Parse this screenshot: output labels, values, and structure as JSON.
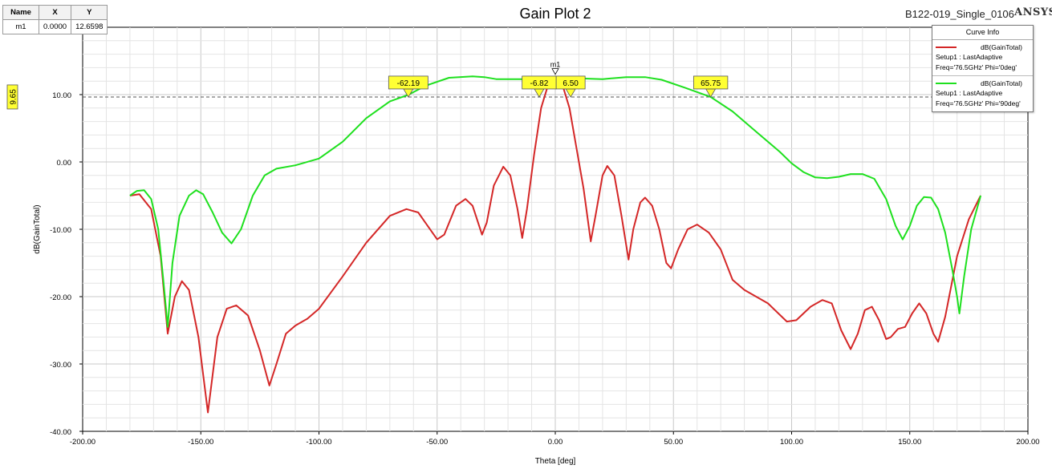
{
  "chart_data": {
    "type": "line",
    "title": "Gain Plot 2",
    "project": "B122-019_Single_0106",
    "vendor": "ANSYS",
    "xlabel": "Theta [deg]",
    "ylabel": "dB(GainTotal)",
    "xlim": [
      -200,
      200
    ],
    "ylim": [
      -40,
      20
    ],
    "x_ticks": [
      -200,
      -150,
      -100,
      -50,
      0,
      50,
      100,
      150,
      200
    ],
    "x_tick_labels": [
      "-200.00",
      "-150.00",
      "-100.00",
      "-50.00",
      "0.00",
      "50.00",
      "100.00",
      "150.00",
      "200.00"
    ],
    "y_ticks": [
      -40,
      -30,
      -20,
      -10,
      0,
      10
    ],
    "y_tick_labels": [
      "-40.00",
      "-30.00",
      "-20.00",
      "-10.00",
      "0.00",
      "10.00"
    ],
    "grid": true,
    "legend_title": "Curve Info",
    "legend_position": "top-right",
    "series": [
      {
        "name": "dB(GainTotal)",
        "setup": "Setup1 : LastAdaptive",
        "freq": "Freq='76.5GHz' Phi='0deg'",
        "color": "#d42727",
        "points": [
          [
            -180,
            -5
          ],
          [
            -176,
            -4.8
          ],
          [
            -171,
            -7
          ],
          [
            -167,
            -14
          ],
          [
            -164,
            -25.5
          ],
          [
            -161,
            -20
          ],
          [
            -158,
            -17.7
          ],
          [
            -155,
            -19
          ],
          [
            -151,
            -26
          ],
          [
            -147,
            -37.2
          ],
          [
            -143,
            -26
          ],
          [
            -139,
            -21.8
          ],
          [
            -135,
            -21.3
          ],
          [
            -130,
            -22.8
          ],
          [
            -125,
            -28
          ],
          [
            -121,
            -33.2
          ],
          [
            -118,
            -30
          ],
          [
            -114,
            -25.5
          ],
          [
            -110,
            -24.3
          ],
          [
            -105,
            -23.3
          ],
          [
            -100,
            -21.8
          ],
          [
            -90,
            -17
          ],
          [
            -80,
            -12
          ],
          [
            -70,
            -8
          ],
          [
            -63,
            -7
          ],
          [
            -58,
            -7.5
          ],
          [
            -55,
            -9
          ],
          [
            -50,
            -11.5
          ],
          [
            -47,
            -10.8
          ],
          [
            -42,
            -6.5
          ],
          [
            -38,
            -5.5
          ],
          [
            -35,
            -6.5
          ],
          [
            -31,
            -10.8
          ],
          [
            -29,
            -9
          ],
          [
            -26,
            -3.5
          ],
          [
            -22,
            -0.7
          ],
          [
            -19,
            -2
          ],
          [
            -16,
            -7
          ],
          [
            -14,
            -11.3
          ],
          [
            -12,
            -7
          ],
          [
            -9,
            1
          ],
          [
            -6,
            8
          ],
          [
            -3,
            11.5
          ],
          [
            0,
            12.66
          ],
          [
            3,
            11.5
          ],
          [
            6,
            8
          ],
          [
            9,
            2
          ],
          [
            12,
            -4
          ],
          [
            15,
            -11.8
          ],
          [
            17,
            -8
          ],
          [
            20,
            -2
          ],
          [
            22,
            -0.6
          ],
          [
            25,
            -2
          ],
          [
            28,
            -8
          ],
          [
            31,
            -14.5
          ],
          [
            33,
            -10
          ],
          [
            36,
            -6
          ],
          [
            38,
            -5.3
          ],
          [
            41,
            -6.5
          ],
          [
            44,
            -10
          ],
          [
            47,
            -15
          ],
          [
            49,
            -15.8
          ],
          [
            52,
            -13
          ],
          [
            56,
            -10
          ],
          [
            60,
            -9.3
          ],
          [
            65,
            -10.5
          ],
          [
            70,
            -13
          ],
          [
            75,
            -17.5
          ],
          [
            80,
            -19
          ],
          [
            90,
            -21
          ],
          [
            98,
            -23.7
          ],
          [
            102,
            -23.5
          ],
          [
            108,
            -21.5
          ],
          [
            113,
            -20.5
          ],
          [
            117,
            -21
          ],
          [
            121,
            -25
          ],
          [
            125,
            -27.8
          ],
          [
            128,
            -25.5
          ],
          [
            131,
            -22
          ],
          [
            134,
            -21.5
          ],
          [
            137,
            -23.5
          ],
          [
            140,
            -26.3
          ],
          [
            142,
            -26
          ],
          [
            145,
            -24.8
          ],
          [
            148,
            -24.5
          ],
          [
            151,
            -22.5
          ],
          [
            154,
            -21
          ],
          [
            157,
            -22.5
          ],
          [
            160,
            -25.5
          ],
          [
            162,
            -26.7
          ],
          [
            165,
            -23
          ],
          [
            170,
            -14
          ],
          [
            175,
            -8.5
          ],
          [
            180,
            -5
          ]
        ]
      },
      {
        "name": "dB(GainTotal)",
        "setup": "Setup1 : LastAdaptive",
        "freq": "Freq='76.5GHz' Phi='90deg'",
        "color": "#1ee01e",
        "points": [
          [
            -180,
            -5
          ],
          [
            -177,
            -4.3
          ],
          [
            -174,
            -4.2
          ],
          [
            -171,
            -5.5
          ],
          [
            -168,
            -10
          ],
          [
            -166,
            -17
          ],
          [
            -164,
            -24.5
          ],
          [
            -162,
            -15
          ],
          [
            -159,
            -8
          ],
          [
            -155,
            -5
          ],
          [
            -152,
            -4.2
          ],
          [
            -149,
            -4.8
          ],
          [
            -145,
            -7.5
          ],
          [
            -141,
            -10.5
          ],
          [
            -137,
            -12.1
          ],
          [
            -133,
            -10
          ],
          [
            -128,
            -5
          ],
          [
            -123,
            -2
          ],
          [
            -118,
            -1
          ],
          [
            -110,
            -0.5
          ],
          [
            -100,
            0.5
          ],
          [
            -90,
            3
          ],
          [
            -80,
            6.5
          ],
          [
            -70,
            9
          ],
          [
            -62,
            10
          ],
          [
            -55,
            11.3
          ],
          [
            -45,
            12.5
          ],
          [
            -35,
            12.7
          ],
          [
            -30,
            12.6
          ],
          [
            -25,
            12.3
          ],
          [
            -20,
            12.3
          ],
          [
            -10,
            12.3
          ],
          [
            0,
            12.4
          ],
          [
            10,
            12.4
          ],
          [
            20,
            12.3
          ],
          [
            30,
            12.6
          ],
          [
            38,
            12.6
          ],
          [
            45,
            12.2
          ],
          [
            55,
            11
          ],
          [
            65.75,
            9.65
          ],
          [
            75,
            7.5
          ],
          [
            85,
            4.5
          ],
          [
            95,
            1.5
          ],
          [
            100,
            -0.2
          ],
          [
            105,
            -1.5
          ],
          [
            110,
            -2.3
          ],
          [
            115,
            -2.4
          ],
          [
            120,
            -2.2
          ],
          [
            125,
            -1.8
          ],
          [
            130,
            -1.8
          ],
          [
            135,
            -2.5
          ],
          [
            140,
            -5.5
          ],
          [
            144,
            -9.5
          ],
          [
            147,
            -11.5
          ],
          [
            150,
            -9.5
          ],
          [
            153,
            -6.5
          ],
          [
            156,
            -5.2
          ],
          [
            159,
            -5.3
          ],
          [
            162,
            -7
          ],
          [
            165,
            -10.5
          ],
          [
            168,
            -16
          ],
          [
            170,
            -20
          ],
          [
            171,
            -22.5
          ],
          [
            173,
            -17
          ],
          [
            176,
            -10
          ],
          [
            180,
            -5
          ]
        ]
      }
    ],
    "markers": [
      {
        "name": "m1",
        "x": 0.0,
        "y": 12.6598
      }
    ],
    "marker_table": {
      "headers": [
        "Name",
        "X",
        "Y"
      ],
      "rows": [
        [
          "m1",
          "0.0000",
          "12.6598"
        ]
      ]
    },
    "reference_line": {
      "y": 9.65,
      "label": "9.65"
    },
    "crossings": [
      {
        "x": -62.19,
        "label": "-62.19"
      },
      {
        "x": -6.82,
        "label": "-6.82"
      },
      {
        "x": 6.5,
        "label": "6.50"
      },
      {
        "x": 65.75,
        "label": "65.75"
      }
    ]
  }
}
